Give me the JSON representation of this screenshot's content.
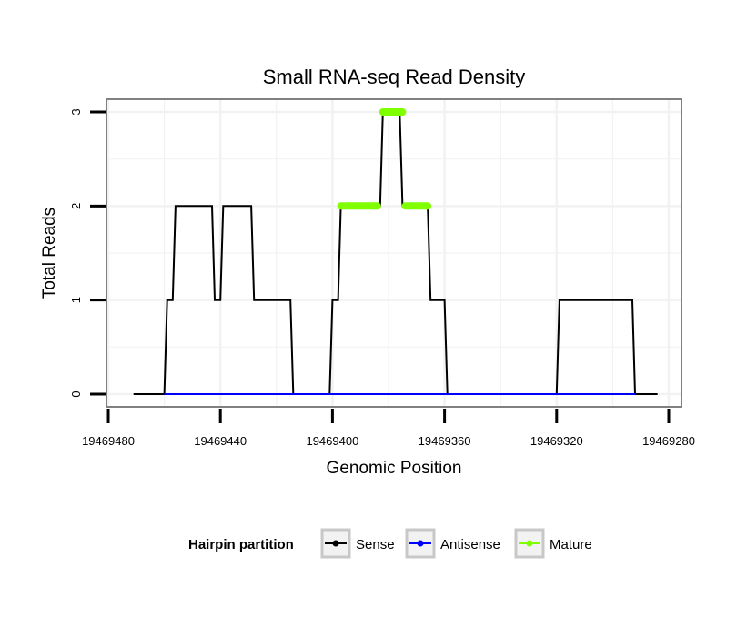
{
  "chart_data": {
    "type": "line",
    "title": "Small RNA-seq Read Density",
    "xlabel": "Genomic Position",
    "ylabel": "Total Reads",
    "xlim": [
      19469480,
      19469280
    ],
    "x_reversed": true,
    "ylim": [
      0,
      3
    ],
    "x_ticks": [
      19469480,
      19469440,
      19469400,
      19469360,
      19469320,
      19469280
    ],
    "x_tick_labels": [
      "19469480",
      "19469440",
      "19469400",
      "19469360",
      "19469320",
      "19469280"
    ],
    "y_ticks": [
      0,
      1,
      2,
      3
    ],
    "y_tick_labels": [
      "0",
      "1",
      "2",
      "3"
    ],
    "grid": true,
    "legend": {
      "title": "Hairpin partition",
      "position": "bottom",
      "entries": [
        {
          "name": "Sense",
          "color": "#000000"
        },
        {
          "name": "Antisense",
          "color": "#0000ff"
        },
        {
          "name": "Mature",
          "color": "#7fff00"
        }
      ]
    },
    "series": [
      {
        "name": "Sense",
        "color": "#000000",
        "points": [
          [
            19469471,
            0
          ],
          [
            19469460,
            0
          ],
          [
            19469459,
            1
          ],
          [
            19469457,
            1
          ],
          [
            19469456,
            2
          ],
          [
            19469443,
            2
          ],
          [
            19469442,
            1
          ],
          [
            19469440,
            1
          ],
          [
            19469439,
            2
          ],
          [
            19469429,
            2
          ],
          [
            19469428,
            1
          ],
          [
            19469415,
            1
          ],
          [
            19469414,
            0
          ],
          [
            19469401,
            0
          ],
          [
            19469400,
            1
          ],
          [
            19469398,
            1
          ],
          [
            19469397,
            2
          ],
          [
            19469383,
            2
          ],
          [
            19469382,
            3
          ],
          [
            19469376,
            3
          ],
          [
            19469375,
            2
          ],
          [
            19469366,
            2
          ],
          [
            19469365,
            1
          ],
          [
            19469360,
            1
          ],
          [
            19469359,
            0
          ],
          [
            19469320,
            0
          ],
          [
            19469319,
            1
          ],
          [
            19469293,
            1
          ],
          [
            19469292,
            0
          ],
          [
            19469284,
            0
          ]
        ]
      },
      {
        "name": "Antisense",
        "color": "#0000ff",
        "points": [
          [
            19469460,
            0
          ],
          [
            19469292,
            0
          ]
        ]
      },
      {
        "name": "Mature",
        "color": "#7fff00",
        "segments": [
          [
            [
              19469397,
              2
            ],
            [
              19469384,
              2
            ]
          ],
          [
            [
              19469382,
              3
            ],
            [
              19469375,
              3
            ]
          ],
          [
            [
              19469374,
              2
            ],
            [
              19469366,
              2
            ]
          ]
        ]
      }
    ]
  }
}
